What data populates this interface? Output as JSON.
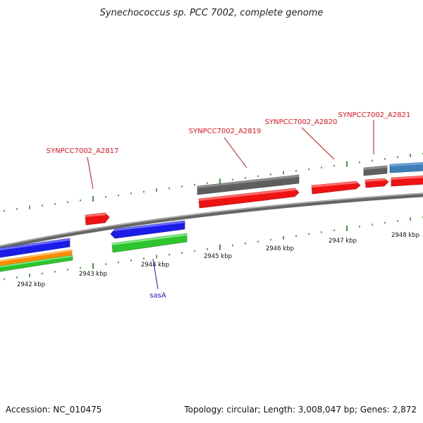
{
  "title": "Synechococcus sp. PCC 7002, complete genome",
  "footer": {
    "accession": "Accession: NC_010475",
    "summary": "Topology: circular; Length: 3,008,047 bp; Genes: 2,872"
  },
  "scale_labels": [
    "2942 kbp",
    "2943 kbp",
    "2944 kbp",
    "2945 kbp",
    "2946 kbp",
    "2947 kbp",
    "2948 kbp"
  ],
  "gene_labels": [
    {
      "name": "SYNPCC7002_A2817",
      "color": "#e8121c"
    },
    {
      "name": "SYNPCC7002_A2819",
      "color": "#e8121c"
    },
    {
      "name": "SYNPCC7002_A2820",
      "color": "#e8121c"
    },
    {
      "name": "SYNPCC7002_A2821",
      "color": "#e8121c"
    },
    {
      "name": "sasA",
      "color": "#1515c8"
    }
  ],
  "colors": {
    "backbone": "#8a8a8a",
    "forward_cds": "#f01010",
    "reverse_cds": "#1e1ee6",
    "gene": "#6a6a6a",
    "rna": "#4682b4",
    "green_feature": "#2ec42e",
    "orange_feature": "#ff8c00",
    "tick": "#1a7a1a"
  }
}
